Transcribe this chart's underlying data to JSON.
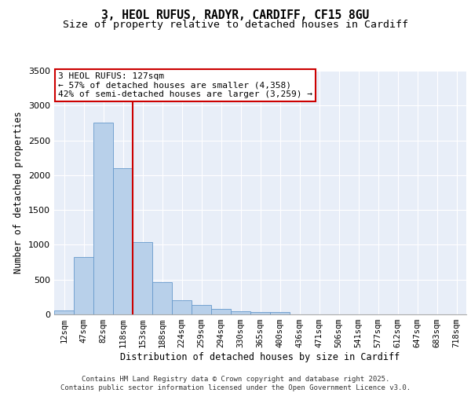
{
  "title_line1": "3, HEOL RUFUS, RADYR, CARDIFF, CF15 8GU",
  "title_line2": "Size of property relative to detached houses in Cardiff",
  "xlabel": "Distribution of detached houses by size in Cardiff",
  "ylabel": "Number of detached properties",
  "bar_color": "#b8d0ea",
  "bar_edge_color": "#6699cc",
  "background_color": "#e8eef8",
  "grid_color": "#ffffff",
  "categories": [
    "12sqm",
    "47sqm",
    "82sqm",
    "118sqm",
    "153sqm",
    "188sqm",
    "224sqm",
    "259sqm",
    "294sqm",
    "330sqm",
    "365sqm",
    "400sqm",
    "436sqm",
    "471sqm",
    "506sqm",
    "541sqm",
    "577sqm",
    "612sqm",
    "647sqm",
    "683sqm",
    "718sqm"
  ],
  "values": [
    55,
    820,
    2750,
    2100,
    1040,
    460,
    200,
    140,
    75,
    50,
    30,
    30,
    5,
    0,
    0,
    0,
    0,
    0,
    0,
    0,
    0
  ],
  "property_bin_index": 3,
  "annotation_text": "3 HEOL RUFUS: 127sqm\n← 57% of detached houses are smaller (4,358)\n42% of semi-detached houses are larger (3,259) →",
  "annotation_box_color": "#ffffff",
  "annotation_box_edge_color": "#cc0000",
  "vline_color": "#cc0000",
  "ylim": [
    0,
    3500
  ],
  "yticks": [
    0,
    500,
    1000,
    1500,
    2000,
    2500,
    3000,
    3500
  ],
  "footer_text": "Contains HM Land Registry data © Crown copyright and database right 2025.\nContains public sector information licensed under the Open Government Licence v3.0."
}
